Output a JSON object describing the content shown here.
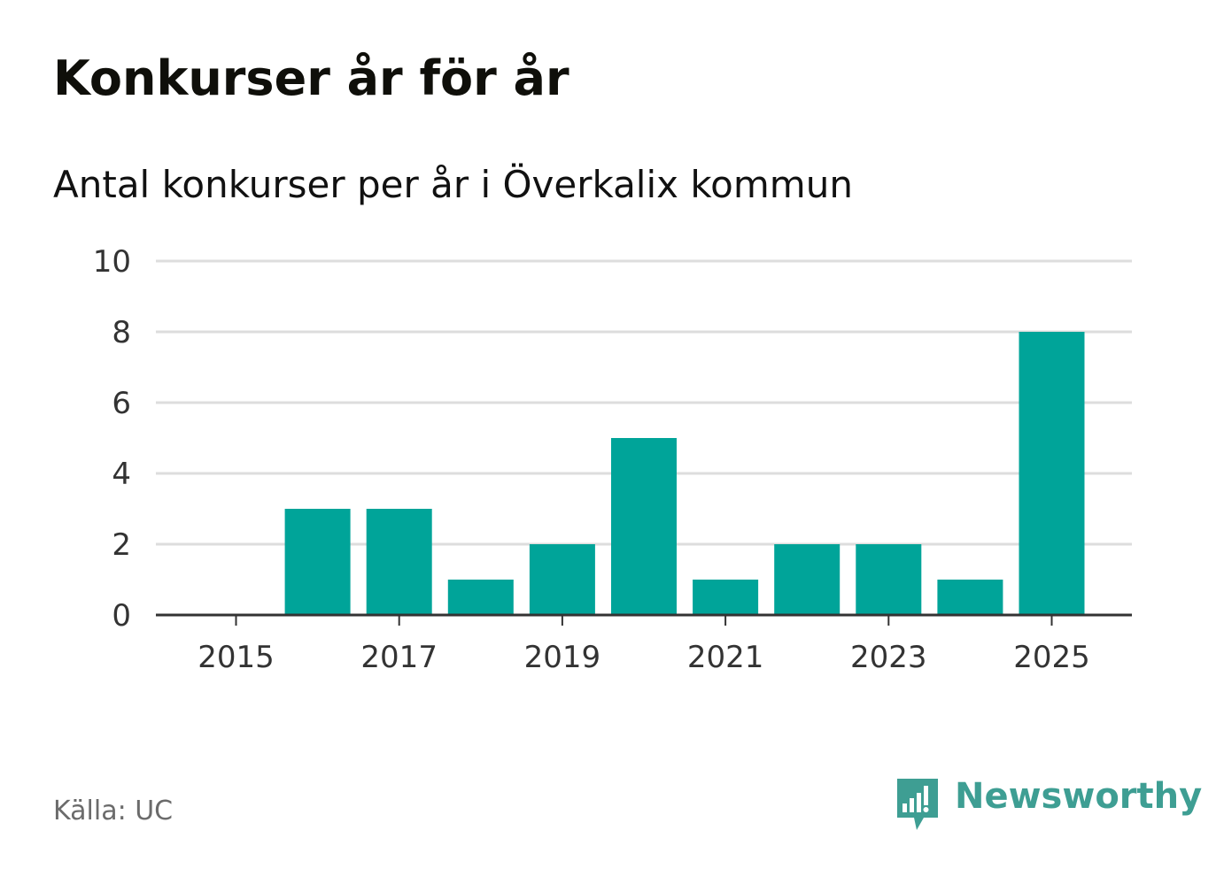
{
  "header": {
    "title": "Konkurser år för år",
    "subtitle": "Antal konkurser per år i Överkalix kommun"
  },
  "footer": {
    "source": "Källa: UC",
    "brand": "Newsworthy"
  },
  "colors": {
    "bar": "#00a499",
    "grid": "#dddddd",
    "axis": "#333333",
    "tick_label": "#333333",
    "brand": "#3e9e93"
  },
  "chart_data": {
    "type": "bar",
    "x": [
      2015,
      2016,
      2017,
      2018,
      2019,
      2020,
      2021,
      2022,
      2023,
      2024,
      2025
    ],
    "values": [
      0,
      3,
      3,
      1,
      2,
      5,
      1,
      2,
      2,
      1,
      8
    ],
    "x_tick_labels": [
      "2015",
      "2017",
      "2019",
      "2021",
      "2023",
      "2025"
    ],
    "y_ticks": [
      0,
      2,
      4,
      6,
      8,
      10
    ],
    "ylim": [
      0,
      10
    ],
    "grid": true,
    "legend": "none",
    "title": "Konkurser år för år",
    "subtitle": "Antal konkurser per år i Överkalix kommun",
    "xlabel": "",
    "ylabel": ""
  }
}
